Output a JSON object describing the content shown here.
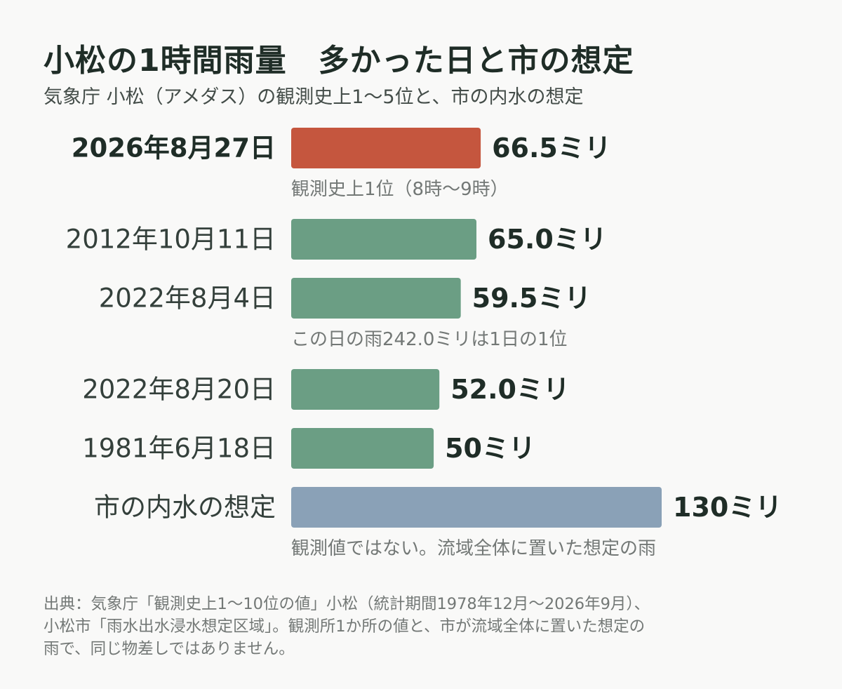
{
  "title": "小松の1時間雨量　多かった日と市の想定",
  "subtitle": "気象庁 小松（アメダス）の観測史上1～5位と、市の内水の想定",
  "source_lines": [
    "出典：気象庁「観測史上1～10位の値」小松（統計期間1978年12月～2026年9月）、",
    "小松市「雨水出水浸水想定区域」。観測所1か所の値と、市が流域全体に置いた想定の",
    "雨で、同じ物差しではありません。"
  ],
  "colors": {
    "highlight": "#c5563e",
    "observed": "#6b9e84",
    "assumption": "#8aa1b7",
    "text": "#26332e",
    "note": "#737876"
  },
  "chart_data": {
    "type": "bar",
    "orientation": "horizontal",
    "categories": [
      "2026年8月27日",
      "2012年10月11日",
      "2022年8月4日",
      "2022年8月20日",
      "1981年6月18日",
      "市の内水の想定"
    ],
    "values": [
      66.5,
      65.0,
      59.5,
      52.0,
      50,
      130
    ],
    "value_labels": [
      "66.5ミリ",
      "65.0ミリ",
      "59.5ミリ",
      "52.0ミリ",
      "50ミリ",
      "130ミリ"
    ],
    "bar_colors": [
      "highlight",
      "observed",
      "observed",
      "observed",
      "observed",
      "assumption"
    ],
    "category_bold": [
      true,
      false,
      false,
      false,
      false,
      false
    ],
    "notes": [
      "観測史上1位（8時～9時）",
      "",
      "この日の雨242.0ミリは1日の1位",
      "",
      "",
      "観測値ではない。流域全体に置いた想定の雨"
    ],
    "xlim": [
      0,
      130
    ],
    "grid": false,
    "legend": "none"
  }
}
